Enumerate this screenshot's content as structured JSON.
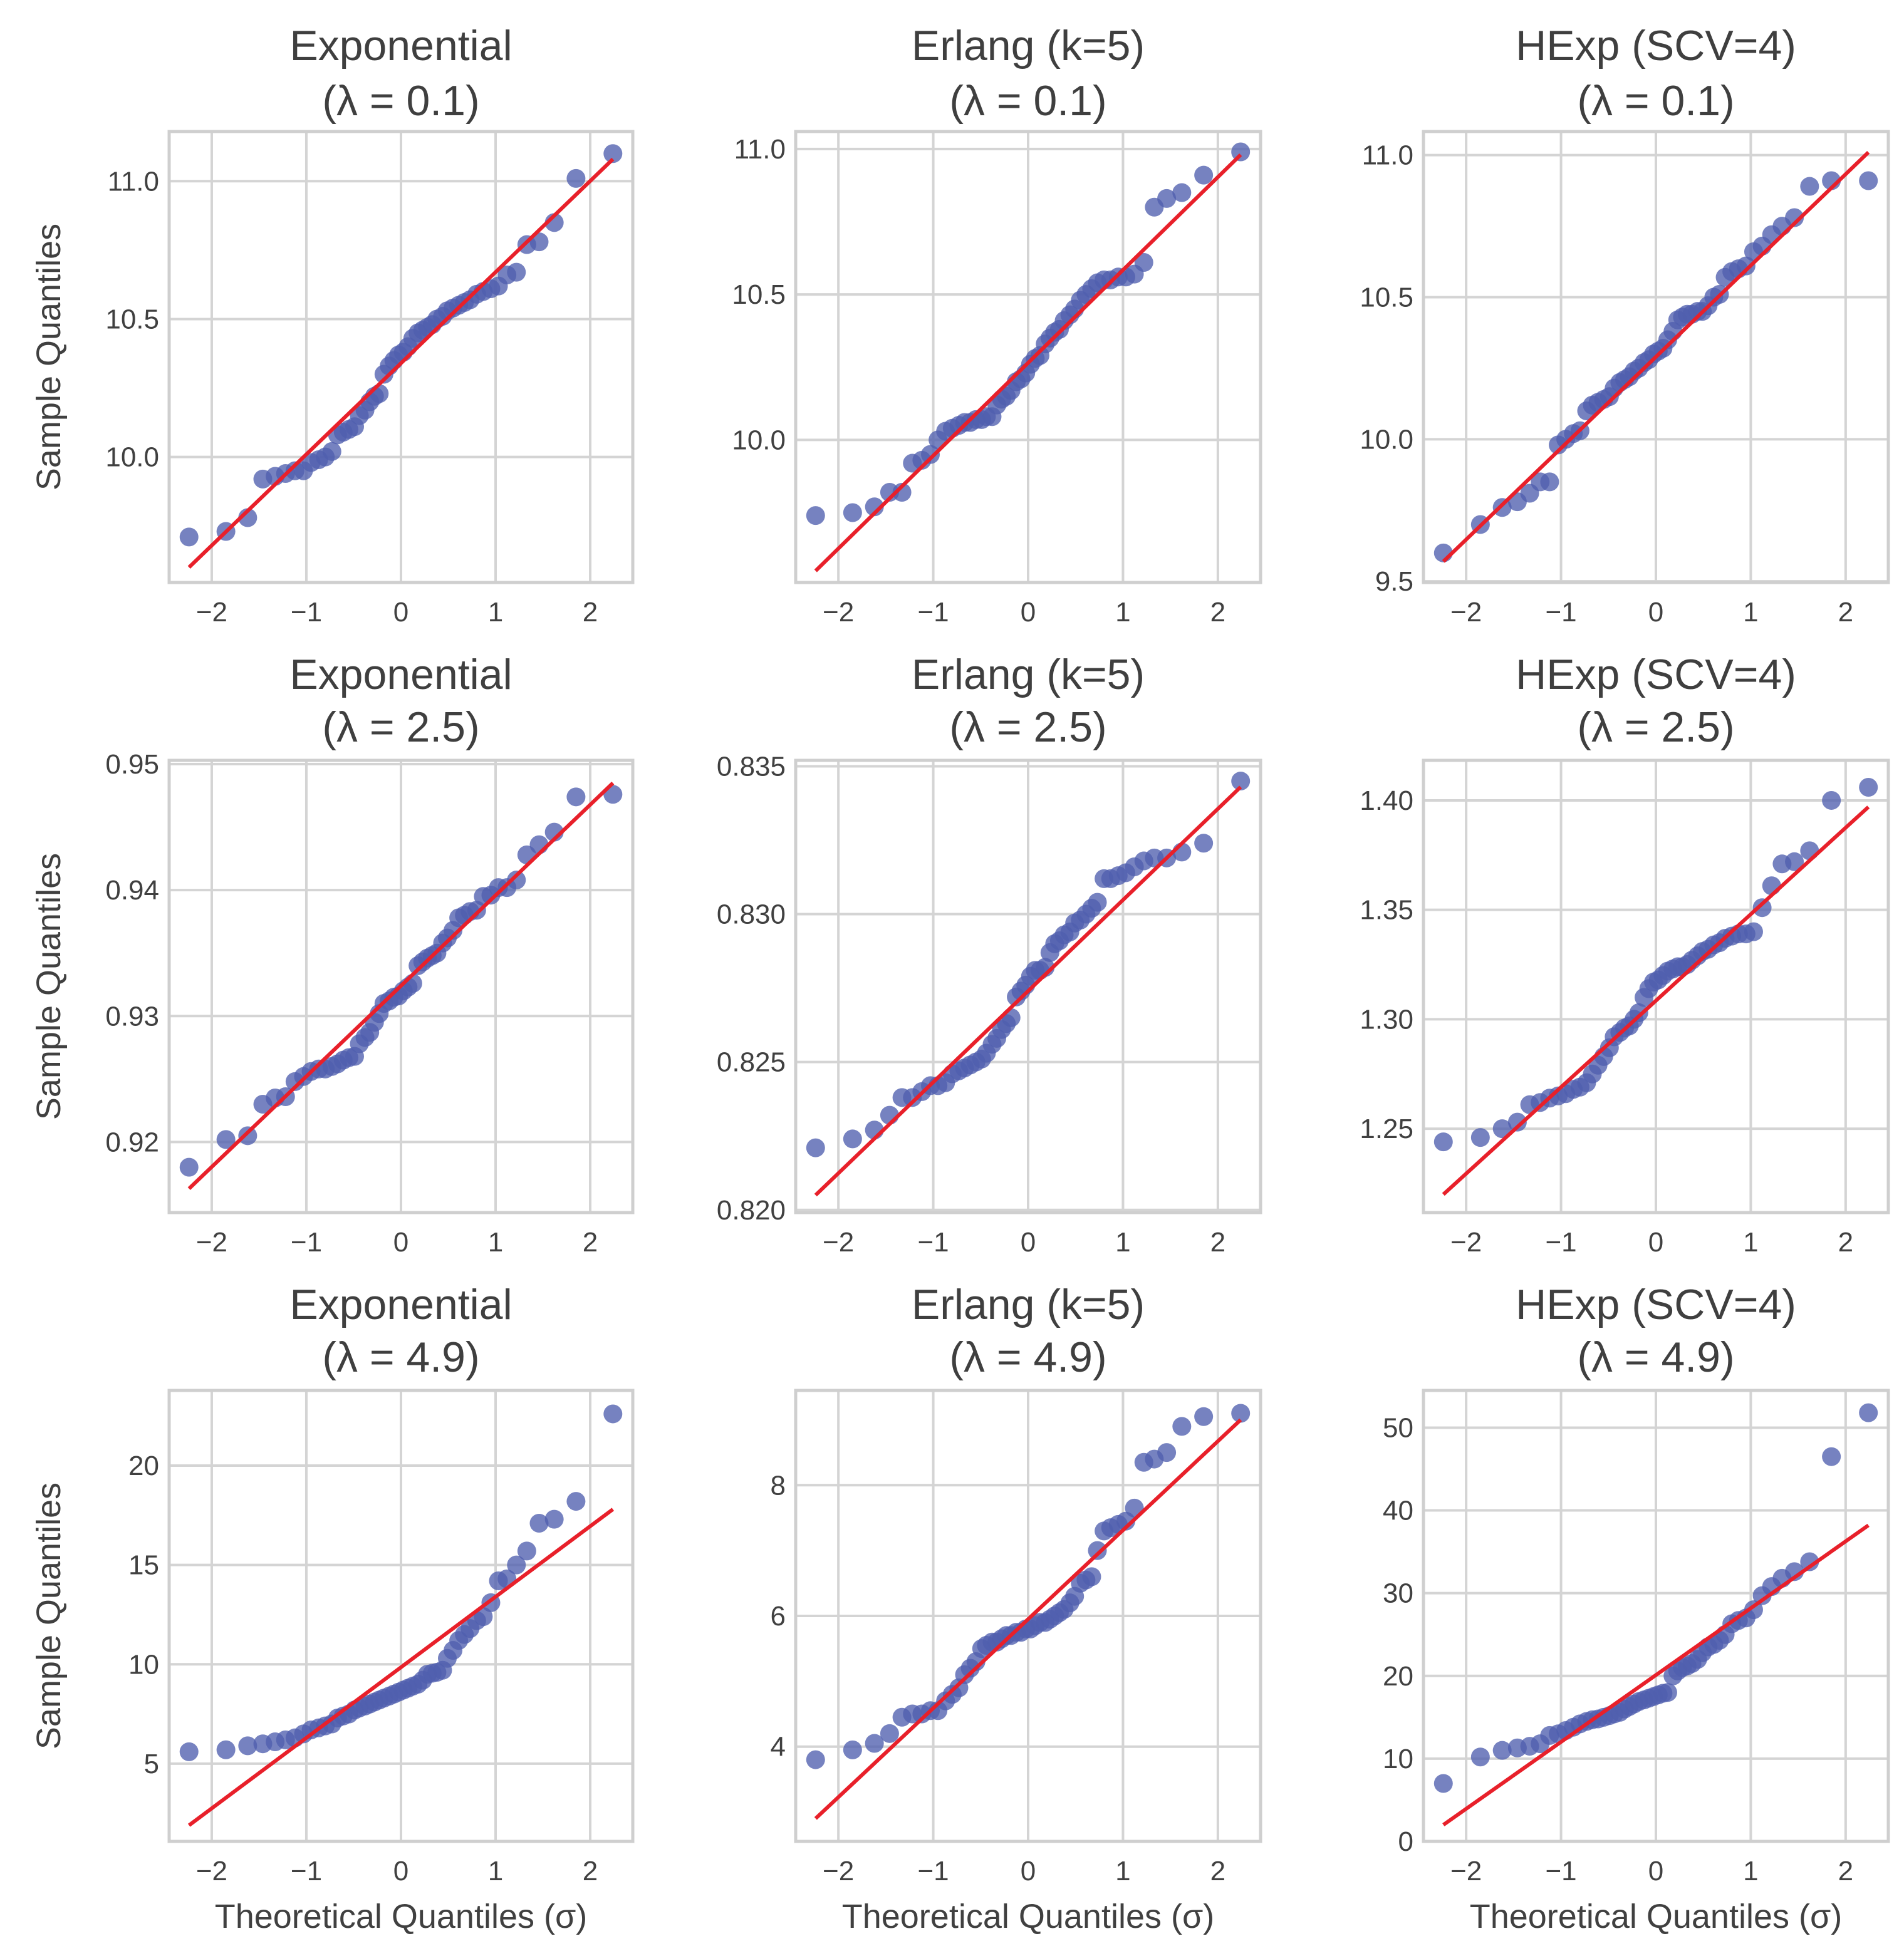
{
  "chart_data": {
    "type": "scatter",
    "layout": "3x3 grid of Q-Q plots",
    "xlabel": "Theoretical Quantiles (σ)",
    "ylabel": "Sample Quantiles",
    "xlim": [
      -2.45,
      2.45
    ],
    "xticks": [
      -2,
      -1,
      0,
      1,
      2
    ],
    "xtick_labels": [
      "−2",
      "−1",
      "0",
      "1",
      "2"
    ],
    "grid": true,
    "colors": {
      "points": "#4f5fae",
      "line": "#e8202a"
    },
    "theoretical_quantiles": [
      -2.24,
      -1.85,
      -1.62,
      -1.46,
      -1.33,
      -1.22,
      -1.12,
      -1.03,
      -0.95,
      -0.87,
      -0.8,
      -0.73,
      -0.67,
      -0.61,
      -0.55,
      -0.49,
      -0.44,
      -0.38,
      -0.33,
      -0.28,
      -0.23,
      -0.18,
      -0.125,
      -0.075,
      -0.025,
      0.025,
      0.075,
      0.125,
      0.18,
      0.23,
      0.28,
      0.33,
      0.38,
      0.44,
      0.49,
      0.55,
      0.61,
      0.67,
      0.73,
      0.8,
      0.87,
      0.95,
      1.03,
      1.12,
      1.22,
      1.33,
      1.46,
      1.62,
      1.85,
      2.24
    ],
    "panels": [
      {
        "title1": "Exponential",
        "title2": "(λ = 0.1)",
        "ylim": [
          9.545,
          11.18
        ],
        "yticks": [
          10.0,
          10.5,
          11.0
        ],
        "ytick_labels": [
          "10.0",
          "10.5",
          "11.0"
        ],
        "fit_line": [
          9.6,
          11.08
        ],
        "y": [
          9.71,
          9.73,
          9.78,
          9.92,
          9.93,
          9.94,
          9.95,
          9.95,
          9.98,
          9.99,
          10.0,
          10.02,
          10.08,
          10.09,
          10.1,
          10.11,
          10.15,
          10.17,
          10.2,
          10.22,
          10.23,
          10.3,
          10.33,
          10.35,
          10.37,
          10.38,
          10.4,
          10.43,
          10.45,
          10.46,
          10.47,
          10.48,
          10.5,
          10.51,
          10.53,
          10.54,
          10.55,
          10.56,
          10.57,
          10.59,
          10.6,
          10.61,
          10.62,
          10.66,
          10.67,
          10.77,
          10.78,
          10.85,
          11.01,
          11.1
        ]
      },
      {
        "title1": "Erlang (k=5)",
        "title2": "(λ = 0.1)",
        "ylim": [
          9.51,
          11.06
        ],
        "yticks": [
          10.0,
          10.5,
          11.0
        ],
        "ytick_labels": [
          "10.0",
          "10.5",
          "11.0"
        ],
        "fit_line": [
          9.55,
          10.98
        ],
        "y": [
          9.74,
          9.75,
          9.77,
          9.82,
          9.82,
          9.92,
          9.93,
          9.95,
          10.0,
          10.03,
          10.04,
          10.05,
          10.06,
          10.06,
          10.07,
          10.07,
          10.08,
          10.08,
          10.12,
          10.14,
          10.15,
          10.17,
          10.2,
          10.21,
          10.23,
          10.26,
          10.28,
          10.29,
          10.33,
          10.35,
          10.37,
          10.38,
          10.41,
          10.43,
          10.45,
          10.48,
          10.5,
          10.52,
          10.54,
          10.55,
          10.55,
          10.56,
          10.56,
          10.57,
          10.61,
          10.8,
          10.83,
          10.85,
          10.91,
          10.99
        ]
      },
      {
        "title1": "HExp (SCV=4)",
        "title2": "(λ = 0.1)",
        "ylim": [
          9.496,
          11.083
        ],
        "yticks": [
          9.5,
          10.0,
          10.5,
          11.0
        ],
        "ytick_labels": [
          "9.5",
          "10.0",
          "10.5",
          "11.0"
        ],
        "fit_line": [
          9.57,
          11.01
        ],
        "y": [
          9.6,
          9.7,
          9.76,
          9.78,
          9.81,
          9.85,
          9.85,
          9.98,
          10.0,
          10.02,
          10.03,
          10.1,
          10.12,
          10.13,
          10.14,
          10.15,
          10.18,
          10.2,
          10.21,
          10.22,
          10.24,
          10.25,
          10.27,
          10.28,
          10.3,
          10.31,
          10.32,
          10.35,
          10.38,
          10.42,
          10.43,
          10.44,
          10.44,
          10.45,
          10.45,
          10.47,
          10.5,
          10.51,
          10.57,
          10.59,
          10.6,
          10.61,
          10.66,
          10.68,
          10.72,
          10.75,
          10.78,
          10.89,
          10.91,
          10.91
        ]
      },
      {
        "title1": "Exponential",
        "title2": "(λ = 2.5)",
        "ylim": [
          0.9144,
          0.9503
        ],
        "yticks": [
          0.92,
          0.93,
          0.94,
          0.95
        ],
        "ytick_labels": [
          "0.92",
          "0.93",
          "0.94",
          "0.95"
        ],
        "fit_line": [
          0.9163,
          0.9485
        ],
        "y": [
          0.918,
          0.9202,
          0.9205,
          0.923,
          0.9235,
          0.9236,
          0.9248,
          0.9252,
          0.9256,
          0.9258,
          0.9258,
          0.926,
          0.9262,
          0.9265,
          0.9267,
          0.9268,
          0.9278,
          0.9283,
          0.9287,
          0.9295,
          0.9302,
          0.931,
          0.9312,
          0.9315,
          0.9316,
          0.932,
          0.9323,
          0.9326,
          0.934,
          0.9343,
          0.9346,
          0.9348,
          0.935,
          0.9358,
          0.9362,
          0.9368,
          0.9378,
          0.938,
          0.9383,
          0.9384,
          0.9395,
          0.9396,
          0.9402,
          0.9402,
          0.9408,
          0.9428,
          0.9436,
          0.9446,
          0.9474,
          0.9476
        ]
      },
      {
        "title1": "Erlang (k=5)",
        "title2": "(λ = 2.5)",
        "ylim": [
          0.81991,
          0.8352
        ],
        "yticks": [
          0.82,
          0.825,
          0.83,
          0.835
        ],
        "ytick_labels": [
          "0.820",
          "0.825",
          "0.830",
          "0.835"
        ],
        "fit_line": [
          0.8205,
          0.8343
        ],
        "y": [
          0.8221,
          0.8224,
          0.8227,
          0.8232,
          0.8238,
          0.8238,
          0.824,
          0.8242,
          0.8242,
          0.8243,
          0.8246,
          0.8247,
          0.8248,
          0.8249,
          0.825,
          0.8251,
          0.8253,
          0.8256,
          0.8258,
          0.8261,
          0.8263,
          0.8265,
          0.8272,
          0.8274,
          0.8276,
          0.8279,
          0.8281,
          0.8281,
          0.8282,
          0.8287,
          0.829,
          0.8291,
          0.8293,
          0.8294,
          0.8297,
          0.8298,
          0.83,
          0.8302,
          0.8304,
          0.8312,
          0.8312,
          0.8313,
          0.8314,
          0.8316,
          0.8318,
          0.8319,
          0.8319,
          0.8321,
          0.8324,
          0.8345
        ]
      },
      {
        "title1": "HExp (SCV=4)",
        "title2": "(λ = 2.5)",
        "ylim": [
          1.2117,
          1.4183
        ],
        "yticks": [
          1.25,
          1.3,
          1.35,
          1.4
        ],
        "ytick_labels": [
          "1.25",
          "1.30",
          "1.35",
          "1.40"
        ],
        "fit_line": [
          1.22,
          1.397
        ],
        "y": [
          1.244,
          1.246,
          1.25,
          1.253,
          1.261,
          1.262,
          1.264,
          1.265,
          1.266,
          1.268,
          1.269,
          1.271,
          1.275,
          1.279,
          1.283,
          1.287,
          1.292,
          1.294,
          1.296,
          1.297,
          1.3,
          1.303,
          1.31,
          1.314,
          1.317,
          1.318,
          1.32,
          1.322,
          1.323,
          1.324,
          1.324,
          1.325,
          1.327,
          1.329,
          1.331,
          1.332,
          1.334,
          1.335,
          1.337,
          1.338,
          1.339,
          1.339,
          1.34,
          1.351,
          1.361,
          1.371,
          1.372,
          1.377,
          1.4,
          1.406
        ]
      },
      {
        "title1": "Exponential",
        "title2": "(λ = 4.9)",
        "ylim": [
          1.09,
          23.78
        ],
        "yticks": [
          5,
          10,
          15,
          20
        ],
        "ytick_labels": [
          "5",
          "10",
          "15",
          "20"
        ],
        "fit_line": [
          1.9,
          17.8
        ],
        "y": [
          5.6,
          5.7,
          5.9,
          6.0,
          6.1,
          6.2,
          6.3,
          6.5,
          6.7,
          6.8,
          6.9,
          7.0,
          7.3,
          7.4,
          7.5,
          7.7,
          7.8,
          7.9,
          8.0,
          8.1,
          8.2,
          8.3,
          8.4,
          8.5,
          8.6,
          8.7,
          8.8,
          8.9,
          9.0,
          9.2,
          9.5,
          9.55,
          9.6,
          9.7,
          10.3,
          10.7,
          11.2,
          11.5,
          11.8,
          12.2,
          12.4,
          13.1,
          14.2,
          14.3,
          15.0,
          15.7,
          17.1,
          17.3,
          18.2,
          22.6
        ]
      },
      {
        "title1": "Erlang (k=5)",
        "title2": "(λ = 4.9)",
        "ylim": [
          2.55,
          9.45
        ],
        "yticks": [
          4,
          6,
          8
        ],
        "ytick_labels": [
          "4",
          "6",
          "8"
        ],
        "fit_line": [
          2.9,
          9.0
        ],
        "y": [
          3.8,
          3.95,
          4.05,
          4.2,
          4.45,
          4.5,
          4.5,
          4.55,
          4.55,
          4.7,
          4.8,
          4.9,
          5.1,
          5.2,
          5.3,
          5.5,
          5.55,
          5.6,
          5.6,
          5.65,
          5.7,
          5.7,
          5.75,
          5.75,
          5.8,
          5.8,
          5.85,
          5.9,
          5.9,
          5.95,
          6.0,
          6.05,
          6.1,
          6.2,
          6.3,
          6.5,
          6.55,
          6.6,
          7.0,
          7.3,
          7.35,
          7.4,
          7.45,
          7.65,
          8.35,
          8.4,
          8.5,
          8.9,
          9.05,
          9.1
        ]
      },
      {
        "title1": "HExp (SCV=4)",
        "title2": "(λ = 4.9)",
        "ylim": [
          0,
          54.5
        ],
        "yticks": [
          0,
          10,
          20,
          30,
          40,
          50
        ],
        "ytick_labels": [
          "0",
          "10",
          "20",
          "30",
          "40",
          "50"
        ],
        "fit_line": [
          2.0,
          38.2
        ],
        "y": [
          7.0,
          10.2,
          11.0,
          11.3,
          11.5,
          11.8,
          12.8,
          13.0,
          13.4,
          13.8,
          14.2,
          14.5,
          14.7,
          14.8,
          15.0,
          15.2,
          15.4,
          15.6,
          16.0,
          16.3,
          16.6,
          16.9,
          17.1,
          17.3,
          17.5,
          17.7,
          17.9,
          18.0,
          20.0,
          20.6,
          21.0,
          21.2,
          21.5,
          22.0,
          22.8,
          23.5,
          23.8,
          24.3,
          25.0,
          26.3,
          26.7,
          27.0,
          28.0,
          29.7,
          30.8,
          31.8,
          32.6,
          33.8,
          46.5,
          51.8
        ]
      }
    ]
  }
}
